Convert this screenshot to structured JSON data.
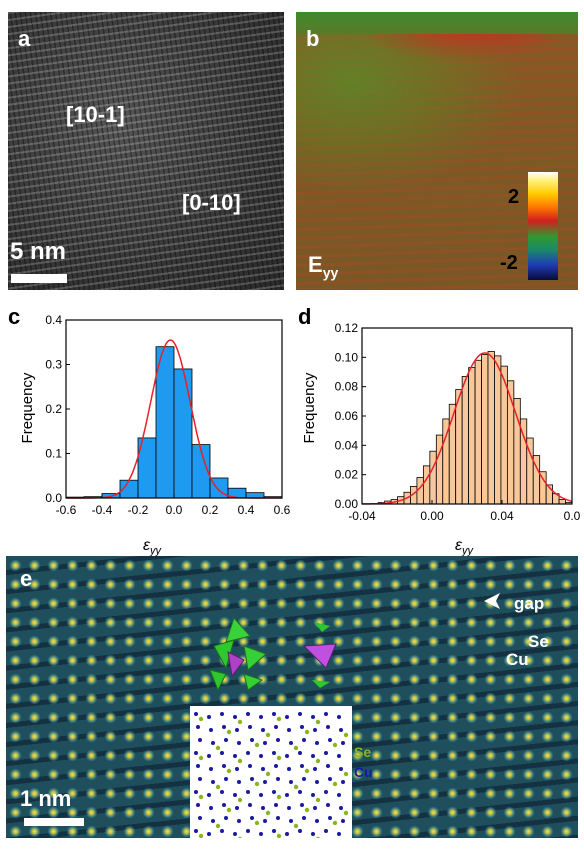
{
  "panel_a": {
    "letter": "a",
    "direction_1": "[10-1]",
    "direction_2": "[0-10]",
    "scalebar": "5 nm"
  },
  "panel_b": {
    "letter": "b",
    "map_label_main": "E",
    "map_label_sub": "yy",
    "colorbar_max": "2",
    "colorbar_min": "-2"
  },
  "panel_c": {
    "letter": "c",
    "ylabel": "Frequency",
    "xlabel_main": "ε",
    "xlabel_sub": "yy"
  },
  "panel_d": {
    "letter": "d",
    "ylabel": "Frequency",
    "xlabel_main": "ε",
    "xlabel_sub": "yy"
  },
  "panel_e": {
    "letter": "e",
    "gap_label": "gap",
    "se_label": "Se",
    "cu_label": "Cu",
    "inset_se": "Se",
    "inset_cu": "Cu",
    "scalebar": "1 nm"
  },
  "colors": {
    "hist_c_fill": "#1e9af0",
    "hist_d_fill": "#f8c89a",
    "fit": "#e8202a",
    "inset_se": "#8ab51e",
    "inset_cu": "#1a1aa0"
  },
  "chart_data": [
    {
      "type": "bar",
      "panel": "c",
      "xlabel": "ε_yy",
      "ylabel": "Frequency",
      "xlim": [
        -0.6,
        0.6
      ],
      "ylim": [
        0,
        0.4
      ],
      "xticks": [
        "-0.6",
        "-0.4",
        "-0.2",
        "0.0",
        "0.2",
        "0.4",
        "0.6"
      ],
      "yticks": [
        "0.0",
        "0.1",
        "0.2",
        "0.3",
        "0.4"
      ],
      "bin_width": 0.1,
      "bin_starts": [
        -0.6,
        -0.5,
        -0.4,
        -0.3,
        -0.2,
        -0.1,
        0.0,
        0.1,
        0.2,
        0.3,
        0.4,
        0.5
      ],
      "values": [
        0.002,
        0.003,
        0.01,
        0.04,
        0.135,
        0.34,
        0.29,
        0.12,
        0.045,
        0.022,
        0.012,
        0.003
      ],
      "fit": {
        "shape": "gaussian",
        "center": -0.02,
        "sigma": 0.11,
        "peak": 0.355
      }
    },
    {
      "type": "bar",
      "panel": "d",
      "xlabel": "ε_yy",
      "ylabel": "Frequency",
      "xlim": [
        -0.05,
        0.08
      ],
      "ylim": [
        0,
        0.12
      ],
      "xticks": [
        "-0.04",
        "0.00",
        "0.04",
        "0.0"
      ],
      "yticks": [
        "0.00",
        "0.02",
        "0.04",
        "0.06",
        "0.08",
        "0.10",
        "0.12"
      ],
      "bin_width": 0.004,
      "bin_starts": [
        -0.04,
        -0.036,
        -0.032,
        -0.028,
        -0.024,
        -0.02,
        -0.016,
        -0.012,
        -0.008,
        -0.004,
        0.0,
        0.004,
        0.008,
        0.012,
        0.016,
        0.02,
        0.024,
        0.028,
        0.032,
        0.036,
        0.04,
        0.044,
        0.048,
        0.052,
        0.056,
        0.06,
        0.064,
        0.068,
        0.072,
        0.076
      ],
      "values": [
        0.001,
        0.002,
        0.003,
        0.005,
        0.008,
        0.012,
        0.018,
        0.026,
        0.036,
        0.047,
        0.058,
        0.068,
        0.078,
        0.087,
        0.093,
        0.098,
        0.102,
        0.104,
        0.101,
        0.094,
        0.084,
        0.072,
        0.058,
        0.045,
        0.033,
        0.022,
        0.013,
        0.007,
        0.003,
        0.001
      ],
      "fit": {
        "shape": "gaussian",
        "center": 0.026,
        "sigma": 0.019,
        "peak": 0.103
      }
    }
  ]
}
